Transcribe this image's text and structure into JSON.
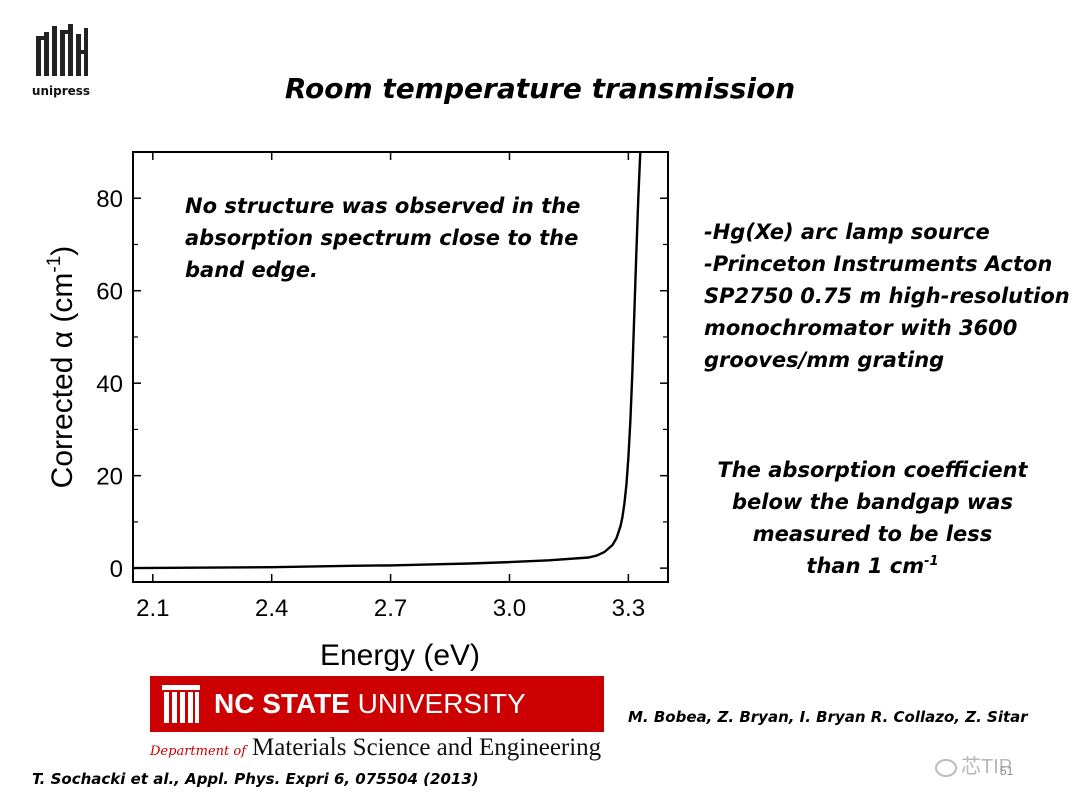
{
  "header": {
    "logo_text": "unipress",
    "title": "Room temperature transmission"
  },
  "chart_data": {
    "type": "line",
    "title": "",
    "xlabel": "Energy (eV)",
    "ylabel_main": "Corrected α (cm",
    "ylabel_sup": "-1",
    "ylabel_tail": ")",
    "xlim": [
      2.05,
      3.4
    ],
    "ylim": [
      -3,
      90
    ],
    "xticks": [
      {
        "value": 2.1,
        "label": "2.1"
      },
      {
        "value": 2.4,
        "label": "2.4"
      },
      {
        "value": 2.7,
        "label": "2.7"
      },
      {
        "value": 3.0,
        "label": "3.0"
      },
      {
        "value": 3.3,
        "label": "3.3"
      }
    ],
    "yticks": [
      {
        "value": 0,
        "label": "0"
      },
      {
        "value": 20,
        "label": "20"
      },
      {
        "value": 40,
        "label": "40"
      },
      {
        "value": 60,
        "label": "60"
      },
      {
        "value": 80,
        "label": "80"
      }
    ],
    "grid": false,
    "series": [
      {
        "x": [
          2.05,
          2.2,
          2.4,
          2.6,
          2.7,
          2.8,
          2.9,
          3.0,
          3.1,
          3.2,
          3.22,
          3.24,
          3.26,
          3.27,
          3.28,
          3.285,
          3.29,
          3.295,
          3.3,
          3.305,
          3.31,
          3.315,
          3.32,
          3.325,
          3.33
        ],
        "y": [
          0.0,
          0.1,
          0.2,
          0.5,
          0.6,
          0.8,
          1.0,
          1.3,
          1.7,
          2.3,
          2.7,
          3.5,
          5.0,
          6.5,
          9.0,
          11.0,
          14.0,
          18.0,
          24.0,
          32.0,
          42.0,
          55.0,
          68.0,
          80.0,
          90.0
        ]
      }
    ],
    "annotation": [
      "No structure was observed in the",
      "absorption spectrum close to the",
      "band edge."
    ]
  },
  "equipment_lines": [
    "-Hg(Xe) arc lamp source",
    "-Princeton Instruments Acton",
    "SP2750 0.75 m high-resolution",
    "monochromator with 3600",
    "grooves/mm grating"
  ],
  "absorption_note": {
    "lines": [
      "The absorption coefficient",
      "below the bandgap was",
      "measured to be less"
    ],
    "last_line_prefix": "than 1 cm",
    "last_line_sup": "-1"
  },
  "footer": {
    "university_bold": "NC STATE",
    "university_rest": " UNIVERSITY",
    "dept_prefix": "Department of",
    "dept_name": "Materials Science and Engineering",
    "authors": "M. Bobea, Z. Bryan, I. Bryan R. Collazo, Z. Sitar",
    "reference": "T. Sochacki et al., Appl. Phys. Expri 6, 075504 (2013)",
    "watermark": "芯TIP",
    "page_number": "51"
  },
  "colors": {
    "ncsu_red": "#cc0000",
    "curve": "#000000"
  }
}
